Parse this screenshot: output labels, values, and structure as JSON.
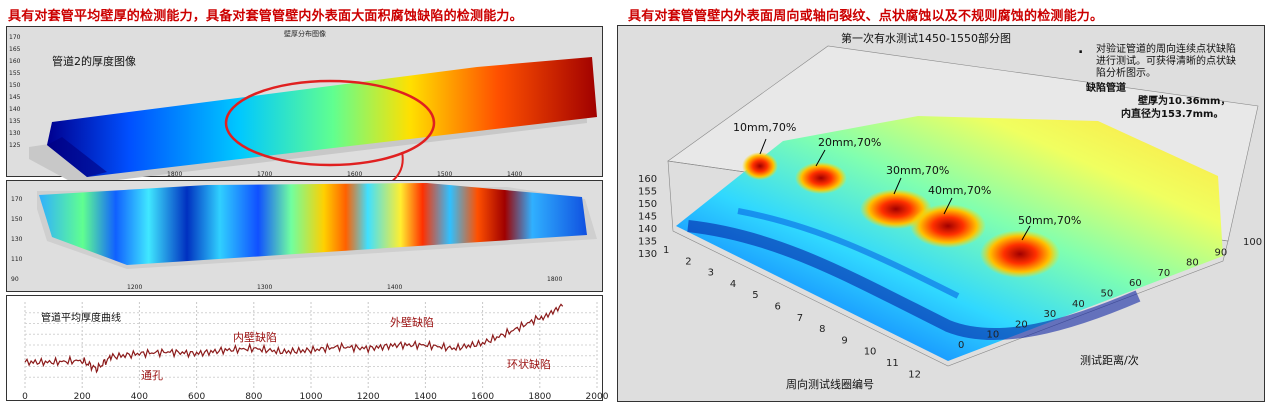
{
  "headings": {
    "left": "具有对套管平均壁厚的检测能力，具备对套管管壁内外表面大面积腐蚀缺陷的检测能力。",
    "right": "具有对套管管壁内外表面周向或轴向裂纹、点状腐蚀以及不规则腐蚀的检测能力。"
  },
  "left_panel": {
    "top_title": "壁厚分布图像",
    "top_label": "管道2的厚度图像",
    "curve_title": "管道平均厚度曲线",
    "annotations": [
      "通孔",
      "内壁缺陷",
      "外壁缺陷",
      "环状缺陷"
    ]
  },
  "right_panel": {
    "title": "第一次有水测试1450-1550部分图",
    "note_lines": [
      "对验证管道的周向连续点状缺陷",
      "进行测试。可获得清晰的点状缺",
      "陷分析图示。"
    ],
    "defect_label": "缺陷管道",
    "wall_thickness": "壁厚为10.36mm，",
    "inner_diameter": "内直径为153.7mm。",
    "xlabel": "周向测试线圈编号",
    "ylabel": "测试距离/次"
  },
  "colors": {
    "heading": "#cc0000",
    "curve": "#8b1a1a",
    "accent_red": "#e02020"
  },
  "chart_data": [
    {
      "type": "line",
      "title": "管道平均厚度曲线",
      "xlim": [
        0,
        2000
      ],
      "xticks": [
        0,
        200,
        400,
        600,
        800,
        1000,
        1200,
        1400,
        1600,
        1800,
        2000
      ],
      "x": [
        0,
        100,
        200,
        250,
        300,
        400,
        500,
        600,
        700,
        800,
        900,
        1000,
        1100,
        1200,
        1300,
        1400,
        1500,
        1600,
        1700,
        1800,
        1880
      ],
      "y": [
        0.3,
        0.3,
        0.32,
        0.22,
        0.36,
        0.4,
        0.42,
        0.4,
        0.44,
        0.46,
        0.42,
        0.44,
        0.48,
        0.46,
        0.5,
        0.5,
        0.46,
        0.52,
        0.66,
        0.82,
        0.95
      ],
      "annotations": [
        {
          "text": "通孔",
          "x": 450
        },
        {
          "text": "内壁缺陷",
          "x": 760
        },
        {
          "text": "外壁缺陷",
          "x": 1290
        },
        {
          "text": "环状缺陷",
          "x": 1680
        }
      ],
      "grid": true
    },
    {
      "type": "surface",
      "title": "第一次有水测试1450-1550部分图",
      "xlabel": "周向测试线圈编号",
      "ylabel": "测试距离/次",
      "xticks": [
        1,
        2,
        3,
        4,
        5,
        6,
        7,
        8,
        9,
        10,
        11,
        12
      ],
      "yticks": [
        0,
        10,
        20,
        30,
        40,
        50,
        60,
        70,
        80,
        90,
        100
      ],
      "zticks": [
        130,
        135,
        140,
        145,
        150,
        155,
        160
      ],
      "peaks": [
        {
          "label": "10mm,70%"
        },
        {
          "label": "20mm,70%"
        },
        {
          "label": "30mm,70%"
        },
        {
          "label": "40mm,70%"
        },
        {
          "label": "50mm,70%"
        }
      ]
    }
  ]
}
